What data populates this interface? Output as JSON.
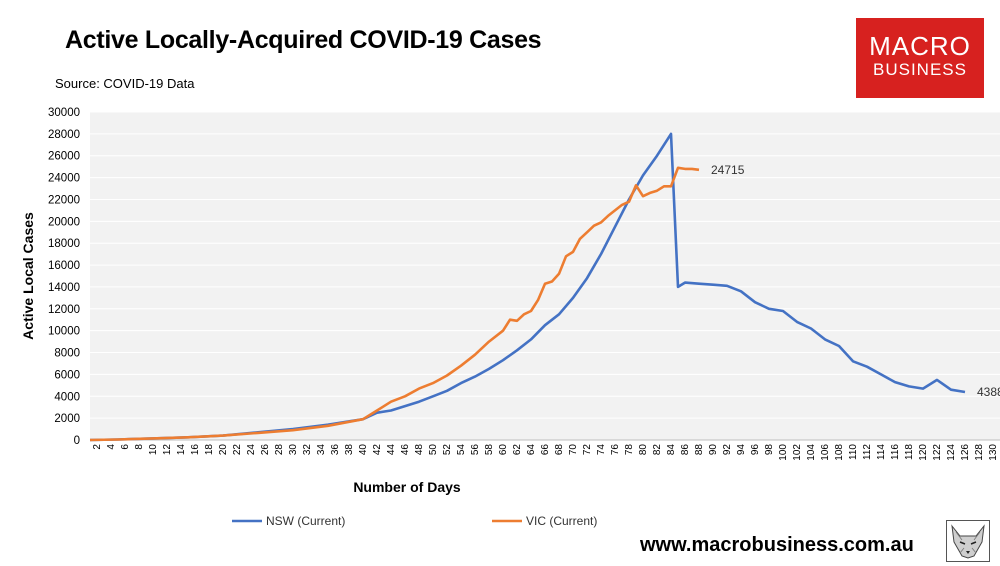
{
  "header": {
    "title": "Active Locally-Acquired COVID-19 Cases",
    "source": "Source: COVID-19 Data"
  },
  "logo": {
    "line1": "MACRO",
    "line2": "BUSINESS"
  },
  "footer": {
    "url": "www.macrobusiness.com.au"
  },
  "colors": {
    "nsw": "#4472c4",
    "vic": "#ed7d31",
    "plot_bg": "#f2f2f2",
    "brand": "#d7211f"
  },
  "chart_data": {
    "type": "line",
    "title": "Active Locally-Acquired COVID-19 Cases",
    "xlabel": "Number of Days",
    "ylabel": "Active Local Cases",
    "xlim": [
      1,
      131
    ],
    "ylim": [
      0,
      30000
    ],
    "yticks": [
      0,
      2000,
      4000,
      6000,
      8000,
      10000,
      12000,
      14000,
      16000,
      18000,
      20000,
      22000,
      24000,
      26000,
      28000,
      30000
    ],
    "xticks": [
      2,
      4,
      6,
      8,
      10,
      12,
      14,
      16,
      18,
      20,
      22,
      24,
      26,
      28,
      30,
      32,
      34,
      36,
      38,
      40,
      42,
      44,
      46,
      48,
      50,
      52,
      54,
      56,
      58,
      60,
      62,
      64,
      66,
      68,
      70,
      72,
      74,
      76,
      78,
      80,
      82,
      84,
      86,
      88,
      90,
      92,
      94,
      96,
      98,
      100,
      102,
      104,
      106,
      108,
      110,
      112,
      114,
      116,
      118,
      120,
      122,
      124,
      126,
      128,
      130
    ],
    "legend_position": "bottom",
    "annotations": [
      {
        "series": "VIC (Current)",
        "text": "24715"
      },
      {
        "series": "NSW (Current)",
        "text": "4388"
      }
    ],
    "series": [
      {
        "name": "NSW (Current)",
        "color": "#4472c4",
        "x": [
          1,
          5,
          10,
          15,
          20,
          25,
          30,
          35,
          40,
          42,
          44,
          46,
          48,
          50,
          52,
          54,
          56,
          58,
          60,
          62,
          64,
          66,
          68,
          70,
          72,
          74,
          76,
          78,
          80,
          82,
          84,
          85,
          86,
          88,
          90,
          92,
          94,
          96,
          98,
          100,
          102,
          104,
          106,
          108,
          110,
          112,
          114,
          116,
          118,
          120,
          122,
          124,
          126
        ],
        "y": [
          0,
          50,
          150,
          250,
          400,
          700,
          1000,
          1400,
          1900,
          2500,
          2700,
          3100,
          3500,
          4000,
          4500,
          5200,
          5800,
          6500,
          7300,
          8200,
          9200,
          10500,
          11500,
          13000,
          14800,
          17000,
          19500,
          22000,
          24200,
          26000,
          28000,
          14000,
          14400,
          14300,
          14200,
          14100,
          13600,
          12600,
          12000,
          11800,
          10800,
          10200,
          9200,
          8600,
          7200,
          6700,
          6000,
          5300,
          4900,
          4700,
          5500,
          4600,
          4388
        ]
      },
      {
        "name": "VIC (Current)",
        "color": "#ed7d31",
        "x": [
          1,
          5,
          10,
          15,
          20,
          25,
          30,
          35,
          40,
          42,
          44,
          46,
          48,
          50,
          52,
          54,
          56,
          58,
          60,
          61,
          62,
          63,
          64,
          65,
          66,
          67,
          68,
          69,
          70,
          71,
          72,
          73,
          74,
          75,
          76,
          77,
          78,
          79,
          80,
          81,
          82,
          83,
          84,
          85,
          86,
          87,
          88
        ],
        "y": [
          0,
          50,
          150,
          250,
          400,
          650,
          900,
          1300,
          1900,
          2700,
          3500,
          4000,
          4700,
          5200,
          5900,
          6800,
          7800,
          9000,
          10000,
          11000,
          10900,
          11500,
          11800,
          12800,
          14300,
          14500,
          15200,
          16800,
          17200,
          18400,
          19000,
          19600,
          19900,
          20500,
          21000,
          21500,
          21800,
          23300,
          22300,
          22600,
          22800,
          23200,
          23200,
          24900,
          24800,
          24800,
          24715
        ]
      }
    ]
  }
}
